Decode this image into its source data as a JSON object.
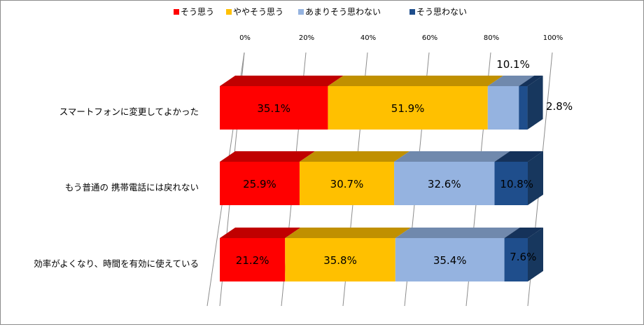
{
  "colors": {
    "front": [
      "#ff0000",
      "#ffc000",
      "#95b3e0",
      "#1f4e8c"
    ],
    "top": [
      "#c00000",
      "#c09000",
      "#7089ad",
      "#15325a"
    ],
    "side": "#17375e",
    "grid": "#8c8c8c"
  },
  "chart_data": {
    "type": "bar",
    "orientation": "horizontal-stacked-3d",
    "categories": [
      "スマートフォンに変更してよかった",
      "もう普通の 携帯電話には戻れない",
      "効率がよくなり、時間を有効に使えている"
    ],
    "series": [
      {
        "name": "そう思う",
        "values": [
          35.1,
          25.9,
          21.2
        ],
        "labels": [
          "35.1%",
          "25.9%",
          "21.2%"
        ]
      },
      {
        "name": "ややそう思う",
        "values": [
          51.9,
          30.7,
          35.8
        ],
        "labels": [
          "51.9%",
          "30.7%",
          "35.8%"
        ]
      },
      {
        "name": "あまりそう思わない",
        "values": [
          10.1,
          32.6,
          35.4
        ],
        "labels": [
          "10.1%",
          "32.6%",
          "35.4%"
        ]
      },
      {
        "name": "そう思わない",
        "values": [
          2.8,
          10.8,
          7.6
        ],
        "labels": [
          "2.8%",
          "10.8%",
          "7.6%"
        ]
      }
    ],
    "x_ticks": [
      "0%",
      "20%",
      "40%",
      "60%",
      "80%",
      "100%"
    ],
    "xlim": [
      0,
      100
    ],
    "legend_position": "top",
    "grid": true
  }
}
